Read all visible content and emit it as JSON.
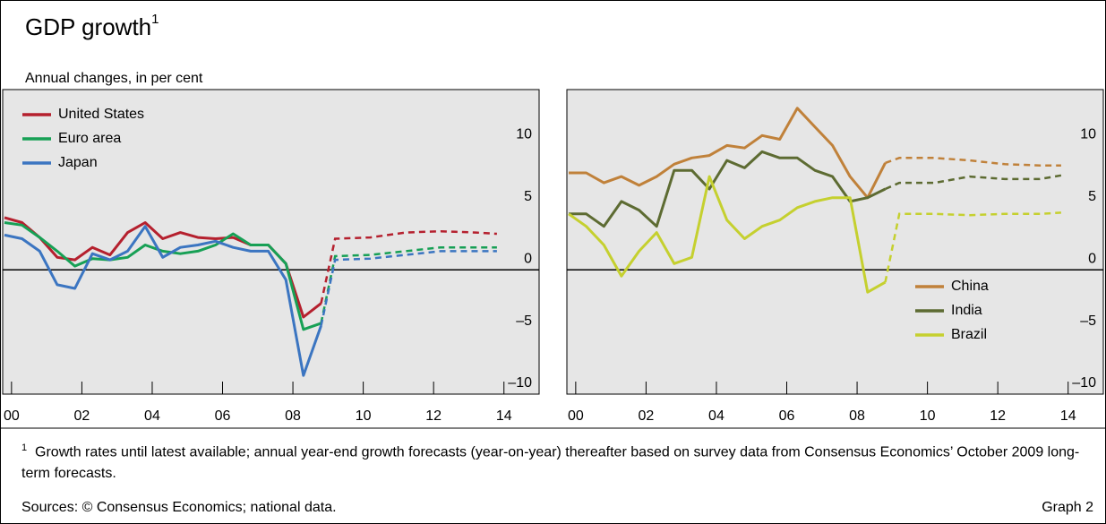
{
  "header": {
    "title": "GDP growth",
    "title_note": "1",
    "subtitle": "Annual changes, in per cent"
  },
  "chart_data": [
    {
      "type": "line",
      "legend": "upper left",
      "xlim": [
        1999.8,
        2015.0
      ],
      "ylim": [
        -10,
        14.5
      ],
      "zero_line": true,
      "xticks": [
        {
          "value": 2000,
          "label": "00"
        },
        {
          "value": 2002,
          "label": "02"
        },
        {
          "value": 2004,
          "label": "04"
        },
        {
          "value": 2006,
          "label": "06"
        },
        {
          "value": 2008,
          "label": "08"
        },
        {
          "value": 2010,
          "label": "10"
        },
        {
          "value": 2012,
          "label": "12"
        },
        {
          "value": 2014,
          "label": "14"
        }
      ],
      "yticks": [
        {
          "value": -10,
          "label": "–10"
        },
        {
          "value": -5,
          "label": "–5"
        },
        0,
        5,
        10
      ],
      "x": [
        1999.8,
        2000.3,
        2000.8,
        2001.3,
        2001.8,
        2002.3,
        2002.8,
        2003.3,
        2003.8,
        2004.3,
        2004.8,
        2005.3,
        2005.8,
        2006.3,
        2006.8,
        2007.3,
        2007.8,
        2008.3,
        2008.8
      ],
      "forecast_x": [
        2008.8,
        2009.2,
        2010.2,
        2011.2,
        2012.2,
        2013.2,
        2013.8
      ],
      "series": [
        {
          "name": "United States",
          "color": "#b5202e",
          "values": [
            4.2,
            3.8,
            2.6,
            1.0,
            0.8,
            1.8,
            1.2,
            3.0,
            3.8,
            2.5,
            3.0,
            2.6,
            2.5,
            2.6,
            2.0,
            2.0,
            0.5,
            -3.8,
            -2.7
          ],
          "forecast_values": [
            -2.7,
            2.5,
            2.6,
            3.0,
            3.1,
            3.0,
            2.9
          ]
        },
        {
          "name": "Euro area",
          "color": "#17a055",
          "values": [
            3.8,
            3.6,
            2.6,
            1.5,
            0.3,
            0.9,
            0.8,
            1.0,
            2.0,
            1.5,
            1.3,
            1.5,
            2.0,
            2.9,
            2.0,
            2.0,
            0.5,
            -4.8,
            -4.3
          ],
          "forecast_values": [
            -4.3,
            1.1,
            1.2,
            1.5,
            1.8,
            1.8,
            1.8
          ]
        },
        {
          "name": "Japan",
          "color": "#3b75c1",
          "values": [
            2.8,
            2.5,
            1.5,
            -1.2,
            -1.5,
            1.3,
            0.8,
            1.5,
            3.5,
            1.0,
            1.8,
            2.0,
            2.3,
            1.8,
            1.5,
            1.5,
            -0.8,
            -8.5,
            -4.5
          ],
          "forecast_values": [
            -4.5,
            0.8,
            0.9,
            1.2,
            1.5,
            1.5,
            1.5
          ]
        }
      ]
    },
    {
      "type": "line",
      "legend": "lower right",
      "xlim": [
        1999.8,
        2015.0
      ],
      "ylim": [
        -10,
        14.5
      ],
      "zero_line": true,
      "xticks": [
        {
          "value": 2000,
          "label": "00"
        },
        {
          "value": 2002,
          "label": "02"
        },
        {
          "value": 2004,
          "label": "04"
        },
        {
          "value": 2006,
          "label": "06"
        },
        {
          "value": 2008,
          "label": "08"
        },
        {
          "value": 2010,
          "label": "10"
        },
        {
          "value": 2012,
          "label": "12"
        },
        {
          "value": 2014,
          "label": "14"
        }
      ],
      "yticks": [
        {
          "value": -10,
          "label": "–10"
        },
        {
          "value": -5,
          "label": "–5"
        },
        0,
        5,
        10
      ],
      "x": [
        1999.8,
        2000.3,
        2000.8,
        2001.3,
        2001.8,
        2002.3,
        2002.8,
        2003.3,
        2003.8,
        2004.3,
        2004.8,
        2005.3,
        2005.8,
        2006.3,
        2006.8,
        2007.3,
        2007.8,
        2008.3,
        2008.8
      ],
      "forecast_x": [
        2008.8,
        2009.2,
        2010.2,
        2011.2,
        2012.2,
        2013.2,
        2013.8
      ],
      "series": [
        {
          "name": "China",
          "color": "#c0813a",
          "values": [
            7.8,
            7.8,
            7.0,
            7.5,
            6.8,
            7.5,
            8.5,
            9.0,
            9.2,
            10.0,
            9.8,
            10.8,
            10.5,
            13.0,
            11.5,
            10.0,
            7.5,
            5.8,
            8.6
          ],
          "forecast_values": [
            8.6,
            9.0,
            9.0,
            8.8,
            8.5,
            8.4,
            8.4
          ]
        },
        {
          "name": "India",
          "color": "#5d6b32",
          "values": [
            4.5,
            4.5,
            3.5,
            5.5,
            4.8,
            3.5,
            8.0,
            8.0,
            6.5,
            8.8,
            8.2,
            9.5,
            9.0,
            9.0,
            8.0,
            7.5,
            5.5,
            5.8,
            6.5
          ],
          "forecast_values": [
            6.5,
            7.0,
            7.0,
            7.5,
            7.3,
            7.3,
            7.6
          ]
        },
        {
          "name": "Brazil",
          "color": "#c5d02f",
          "values": [
            4.5,
            3.5,
            2.0,
            -0.5,
            1.5,
            3.0,
            0.5,
            1.0,
            7.5,
            4.0,
            2.5,
            3.5,
            4.0,
            5.0,
            5.5,
            5.8,
            5.8,
            -1.8,
            -1.0
          ],
          "forecast_values": [
            -1.0,
            4.5,
            4.5,
            4.4,
            4.5,
            4.5,
            4.6
          ]
        }
      ]
    }
  ],
  "footnote": {
    "marker": "1",
    "text": "Growth rates until latest available; annual year-end growth forecasts (year-on-year) thereafter based on survey data from Consensus Economics’ October 2009 long-term forecasts."
  },
  "sources": "Sources: © Consensus Economics; national data.",
  "graph_label": "Graph 2"
}
